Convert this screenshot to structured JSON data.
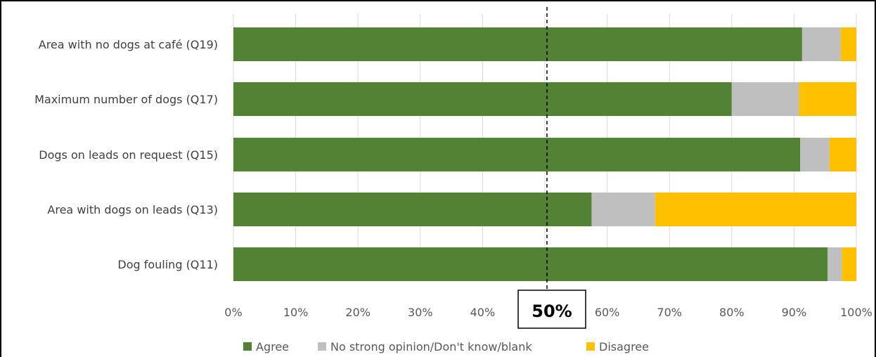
{
  "chart_data": {
    "type": "bar",
    "orientation": "horizontal",
    "stacked": true,
    "percent_stacked": true,
    "categories": [
      "Area with no dogs at café (Q19)",
      "Maximum number of dogs (Q17)",
      "Dogs on leads on request (Q15)",
      "Area with dogs on leads (Q13)",
      "Dog fouling (Q11)"
    ],
    "series": [
      {
        "name": "Agree",
        "color": "#548235",
        "values": [
          91.3,
          80.0,
          91.0,
          57.5,
          95.4
        ]
      },
      {
        "name": "No strong opinion/Don't know/blank",
        "color": "#bfbfbf",
        "values": [
          6.2,
          10.8,
          4.7,
          10.2,
          2.3
        ]
      },
      {
        "name": "Disagree",
        "color": "#ffc000",
        "values": [
          2.5,
          9.2,
          4.3,
          32.3,
          2.3
        ]
      }
    ],
    "xlim": [
      0,
      100
    ],
    "xticks": [
      "0%",
      "10%",
      "20%",
      "30%",
      "40%",
      "50%",
      "60%",
      "70%",
      "80%",
      "90%",
      "100%"
    ],
    "grid": "vertical",
    "legend_position": "bottom",
    "reference_line": {
      "value": 50,
      "label": "50%",
      "style": "dashed"
    }
  }
}
